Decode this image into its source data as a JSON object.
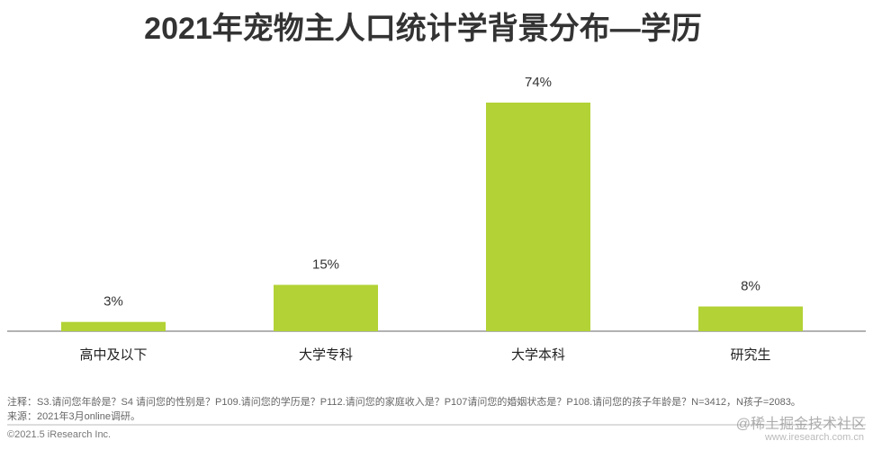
{
  "chart_data": {
    "type": "bar",
    "title": "2021年宠物主人口统计学背景分布—学历",
    "categories": [
      "高中及以下",
      "大学专科",
      "大学本科",
      "研究生"
    ],
    "values": [
      3,
      15,
      74,
      8
    ],
    "value_labels": [
      "3%",
      "15%",
      "74%",
      "8%"
    ],
    "color": "#b2d235",
    "notes": [
      "注释：S3.请问您年龄是？S4 请问您的性别是？P109.请问您的学历是？P112.请问您的家庭收入是？P107请问您的婚姻状态是？P108.请问您的孩子年龄是？N=3412，N孩子=2083。",
      "来源：2021年3月online调研。"
    ],
    "copyright": "©2021.5 iResearch Inc.",
    "website": "www.iresearch.com.cn",
    "watermark": "@稀土掘金技术社区"
  }
}
